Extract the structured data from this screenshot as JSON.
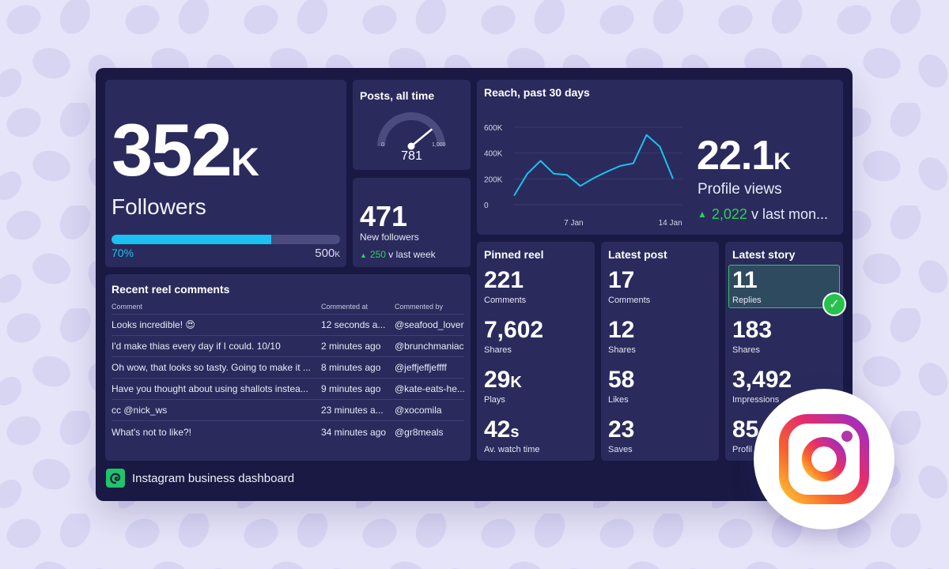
{
  "colors": {
    "page_background": "#e6e4f8",
    "pattern_blob": "#d8d5f3",
    "dashboard_background": "#191943",
    "panel_background": "#2a2b5c",
    "accent_blue": "#1bc1f0",
    "positive_green": "#2ad05a"
  },
  "followers": {
    "value": "352",
    "unit": "K",
    "label": "Followers",
    "progress_fraction": 0.7,
    "progress_label": "70%",
    "target": "500",
    "target_unit": "K"
  },
  "posts": {
    "title": "Posts, all time",
    "value": "781",
    "gauge_fraction": 0.781,
    "min_label": "0",
    "max_label": "1,000"
  },
  "new_followers": {
    "value": "471",
    "label": "New followers",
    "change_icon": "triangle-up-icon",
    "change_value": "250",
    "change_suffix": "v last week"
  },
  "reach": {
    "title": "Reach, past 30 days",
    "big_value": "22.1",
    "big_unit": "K",
    "big_label": "Profile views",
    "change_icon": "triangle-up-icon",
    "change_value": "2,022",
    "change_suffix": "v last mon..."
  },
  "chart_data": {
    "type": "line",
    "title": "Reach, past 30 days",
    "xlabel": "",
    "ylabel": "",
    "ylim": [
      0,
      600000
    ],
    "y_ticks": [
      "0",
      "200K",
      "400K",
      "600K"
    ],
    "x_ticks": [
      "7 Jan",
      "14 Jan"
    ],
    "grid": true,
    "series": [
      {
        "color": "#1bc1f0",
        "x_index": [
          0,
          1,
          2,
          3,
          4,
          5,
          6,
          7,
          8,
          9,
          10,
          11,
          12
        ],
        "values": [
          70000,
          240000,
          340000,
          240000,
          230000,
          145000,
          205000,
          255000,
          300000,
          320000,
          540000,
          450000,
          200000
        ]
      }
    ],
    "x_tick_index": [
      4.5,
      11.8
    ]
  },
  "comments": {
    "title": "Recent reel comments",
    "columns": [
      "Comment",
      "Commented at",
      "Commented by"
    ],
    "rows": [
      [
        "Looks incredible! 😍",
        "12 seconds a...",
        "@seafood_lover"
      ],
      [
        "I'd make thias every day if I could. 10/10",
        "2 minutes ago",
        "@brunchmaniac"
      ],
      [
        "Oh wow, that looks so tasty. Going to make it ...",
        "8 minutes ago",
        "@jeffjeffjeffff"
      ],
      [
        "Have you thought about using shallots instea...",
        "9 minutes ago",
        "@kate-eats-he..."
      ],
      [
        "cc @nick_ws",
        "23 minutes a...",
        "@xocomila"
      ],
      [
        "What's not to like?!",
        "34 minutes ago",
        "@gr8meals"
      ]
    ]
  },
  "pinned_reel": {
    "title": "Pinned reel",
    "stats": [
      {
        "value": "221",
        "unit": "",
        "label": "Comments"
      },
      {
        "value": "7,602",
        "unit": "",
        "label": "Shares"
      },
      {
        "value": "29",
        "unit": "K",
        "label": "Plays"
      },
      {
        "value": "42",
        "unit": "s",
        "label": "Av. watch time"
      }
    ]
  },
  "latest_post": {
    "title": "Latest post",
    "stats": [
      {
        "value": "17",
        "unit": "",
        "label": "Comments"
      },
      {
        "value": "12",
        "unit": "",
        "label": "Shares"
      },
      {
        "value": "58",
        "unit": "",
        "label": "Likes"
      },
      {
        "value": "23",
        "unit": "",
        "label": "Saves"
      }
    ]
  },
  "latest_story": {
    "title": "Latest story",
    "stats": [
      {
        "value": "11",
        "unit": "",
        "label": "Replies"
      },
      {
        "value": "183",
        "unit": "",
        "label": "Shares"
      },
      {
        "value": "3,492",
        "unit": "",
        "label": "Impressions"
      },
      {
        "value": "85",
        "unit": "",
        "label": "Profil"
      }
    ],
    "check_icon": "checkmark-icon"
  },
  "footer": {
    "logo_icon": "geckoboard-logo-icon",
    "title": "Instagram business dashboard"
  },
  "brand_icon": "instagram-logo-icon"
}
